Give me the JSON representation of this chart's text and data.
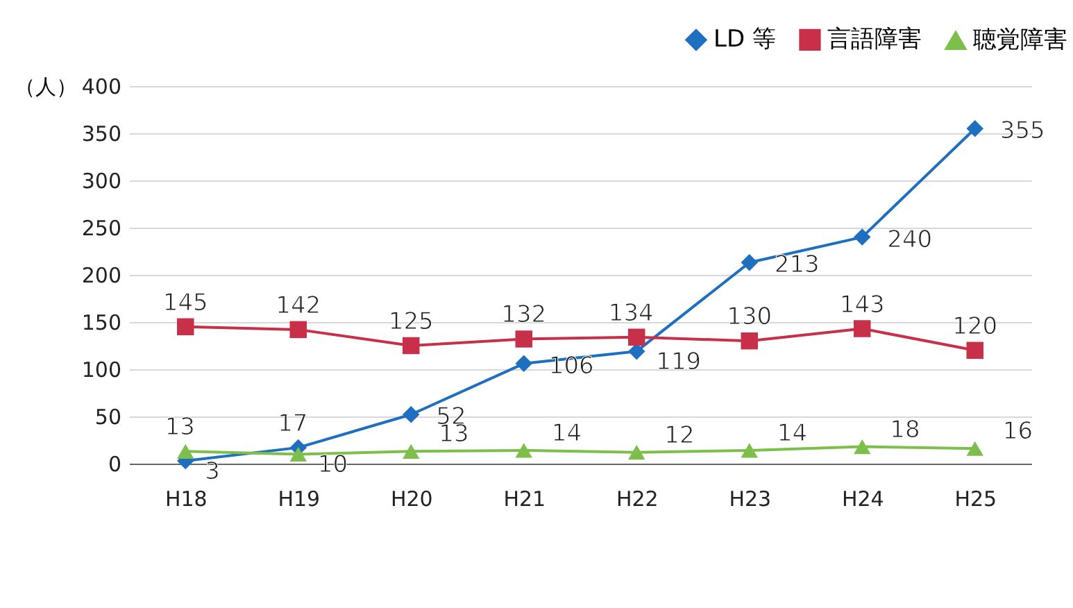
{
  "chart_data": {
    "type": "line",
    "ylabel": "（人）",
    "categories": [
      "H18",
      "H19",
      "H20",
      "H21",
      "H22",
      "H23",
      "H24",
      "H25"
    ],
    "series": [
      {
        "name": "LD 等",
        "color": "#1f6fc0",
        "marker": "diamond",
        "values": [
          3,
          17,
          52,
          106,
          119,
          213,
          240,
          355
        ]
      },
      {
        "name": "言語障害",
        "color": "#c8304a",
        "marker": "square",
        "values": [
          145,
          142,
          125,
          132,
          134,
          130,
          143,
          120
        ]
      },
      {
        "name": "聴覚障害",
        "color": "#7dbf4a",
        "marker": "triangle",
        "values": [
          13,
          10,
          13,
          14,
          12,
          14,
          18,
          16
        ]
      }
    ],
    "ylim": [
      0,
      400
    ],
    "yticks": [
      0,
      50,
      100,
      150,
      200,
      250,
      300,
      350,
      400
    ],
    "grid": "y",
    "legend": "top right",
    "data_labels": true
  }
}
